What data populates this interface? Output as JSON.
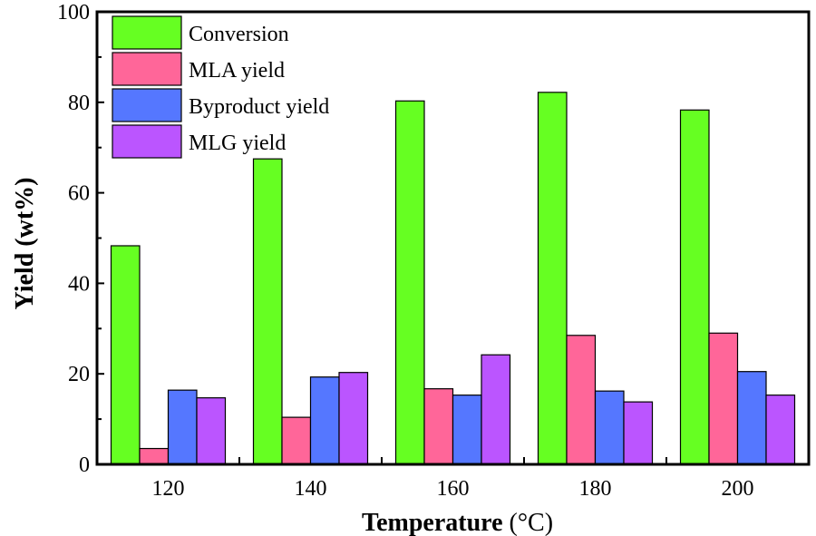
{
  "chart_data": {
    "type": "bar",
    "categories": [
      "120",
      "140",
      "160",
      "180",
      "200"
    ],
    "series": [
      {
        "name": "Conversion",
        "color": "#66ff22",
        "values": [
          48.3,
          67.5,
          80.3,
          82.2,
          78.3
        ]
      },
      {
        "name": "MLA yield",
        "color": "#ff6699",
        "values": [
          3.5,
          10.4,
          16.7,
          28.5,
          29.0
        ]
      },
      {
        "name": "Byproduct yield",
        "color": "#5577ff",
        "values": [
          16.4,
          19.3,
          15.3,
          16.2,
          20.5
        ]
      },
      {
        "name": "MLG yield",
        "color": "#bb55ff",
        "values": [
          14.7,
          20.3,
          24.2,
          13.8,
          15.3
        ]
      }
    ],
    "xlabel_bold": "Temperature",
    "xlabel_unit": " (°C)",
    "ylabel": "Yield (wt%)",
    "ylim": [
      0,
      100
    ],
    "yticks": [
      "0",
      "20",
      "40",
      "60",
      "80",
      "100"
    ],
    "legend_position": "top-left",
    "grid": false
  }
}
